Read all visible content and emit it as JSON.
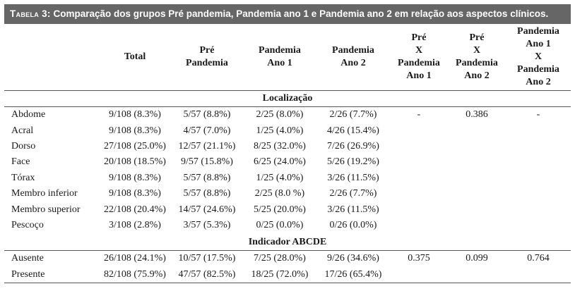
{
  "caption": {
    "label": "Tabela 3:",
    "text": " Comparação dos grupos Pré pandemia, Pandemia ano 1 e Pandemia ano 2 em relação aos aspectos clínicos."
  },
  "headers": [
    "",
    "Total",
    "Pré\nPandemia",
    "Pandemia\nAno 1",
    "Pandemia\nAno 2",
    "Pré\nX\nPandemia\nAno 1",
    "Pré\nX\nPandemia\nAno 2",
    "Pandemia\nAno 1\nX\nPandemia\nAno 2"
  ],
  "sections": [
    {
      "title": "Localização",
      "rows": [
        [
          "Abdome",
          "9/108 (8.3%)",
          "5/57 (8.8%)",
          "2/25 (8.0%)",
          "2/26 (7.7%)",
          "-",
          "0.386",
          "-"
        ],
        [
          "Acral",
          "9/108 (8.3%)",
          "4/57 (7.0%)",
          "1/25 (4.0%)",
          "4/26 (15.4%)",
          "",
          "",
          ""
        ],
        [
          "Dorso",
          "27/108 (25.0%)",
          "12/57 (21.1%)",
          "8/25 (32.0%)",
          "7/26 (26.9%)",
          "",
          "",
          ""
        ],
        [
          "Face",
          "20/108 (18.5%)",
          "9/57 (15.8%)",
          "6/25 (24.0%)",
          "5/26 (19.2%)",
          "",
          "",
          ""
        ],
        [
          "Tórax",
          "9/108 (8.3%)",
          "5/57 (8.8%)",
          "1/25 (4.0%)",
          "3/26 (11.5%)",
          "",
          "",
          ""
        ],
        [
          "Membro inferior",
          "9/108 (8.3%)",
          "5/57 (8.8%)",
          "2/25 (8.0 %)",
          "2/26 (7.7%)",
          "",
          "",
          ""
        ],
        [
          "Membro superior",
          "22/108 (20.4%)",
          "14/57 (24.6%)",
          "5/25 (20.0%)",
          "3/26 (11.5%)",
          "",
          "",
          ""
        ],
        [
          "Pescoço",
          "3/108 (2.8%)",
          "3/57 (5.3%)",
          "0/25 (0.0%)",
          "0/26 (0.0%)",
          "",
          "",
          ""
        ]
      ]
    },
    {
      "title": "Indicador ABCDE",
      "rows": [
        [
          "Ausente",
          "26/108 (24.1%)",
          "10/57 (17.5%)",
          "7/25 (28.0%)",
          "9/26 (34.6%)",
          "0.375",
          "0.099",
          "0.764"
        ],
        [
          "Presente",
          "82/108 (75.9%)",
          "47/57 (82.5%)",
          "18/25 (72.0%)",
          "17/26 (65.4%)",
          "",
          "",
          ""
        ]
      ]
    }
  ]
}
